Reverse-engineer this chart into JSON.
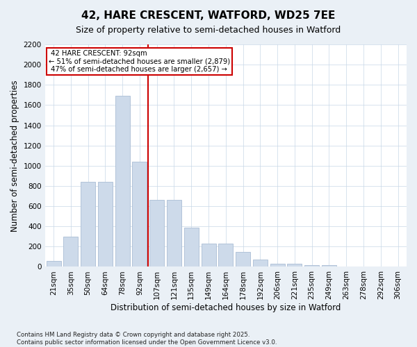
{
  "title1": "42, HARE CRESCENT, WATFORD, WD25 7EE",
  "title2": "Size of property relative to semi-detached houses in Watford",
  "xlabel": "Distribution of semi-detached houses by size in Watford",
  "ylabel": "Number of semi-detached properties",
  "property_label": "42 HARE CRESCENT: 92sqm",
  "pct_smaller": 51,
  "count_smaller": 2879,
  "pct_larger": 47,
  "count_larger": 2657,
  "bar_color": "#cddaea",
  "bar_edge_color": "#aabdd4",
  "vline_color": "#cc0000",
  "box_edge_color": "#cc0000",
  "categories": [
    "21sqm",
    "35sqm",
    "50sqm",
    "64sqm",
    "78sqm",
    "92sqm",
    "107sqm",
    "121sqm",
    "135sqm",
    "149sqm",
    "164sqm",
    "178sqm",
    "192sqm",
    "206sqm",
    "221sqm",
    "235sqm",
    "249sqm",
    "263sqm",
    "278sqm",
    "292sqm",
    "306sqm"
  ],
  "values": [
    55,
    300,
    840,
    840,
    1690,
    1040,
    660,
    660,
    390,
    230,
    230,
    150,
    70,
    30,
    30,
    20,
    20,
    5,
    5,
    5,
    5
  ],
  "ylim": [
    0,
    2200
  ],
  "yticks": [
    0,
    200,
    400,
    600,
    800,
    1000,
    1200,
    1400,
    1600,
    1800,
    2000,
    2200
  ],
  "vline_x": 5.5,
  "footnote1": "Contains HM Land Registry data © Crown copyright and database right 2025.",
  "footnote2": "Contains public sector information licensed under the Open Government Licence v3.0.",
  "bg_color": "#eaf0f6",
  "plot_bg_color": "#ffffff",
  "title_fontsize": 11,
  "subtitle_fontsize": 9,
  "axis_fontsize": 8.5,
  "tick_fontsize": 7.5
}
